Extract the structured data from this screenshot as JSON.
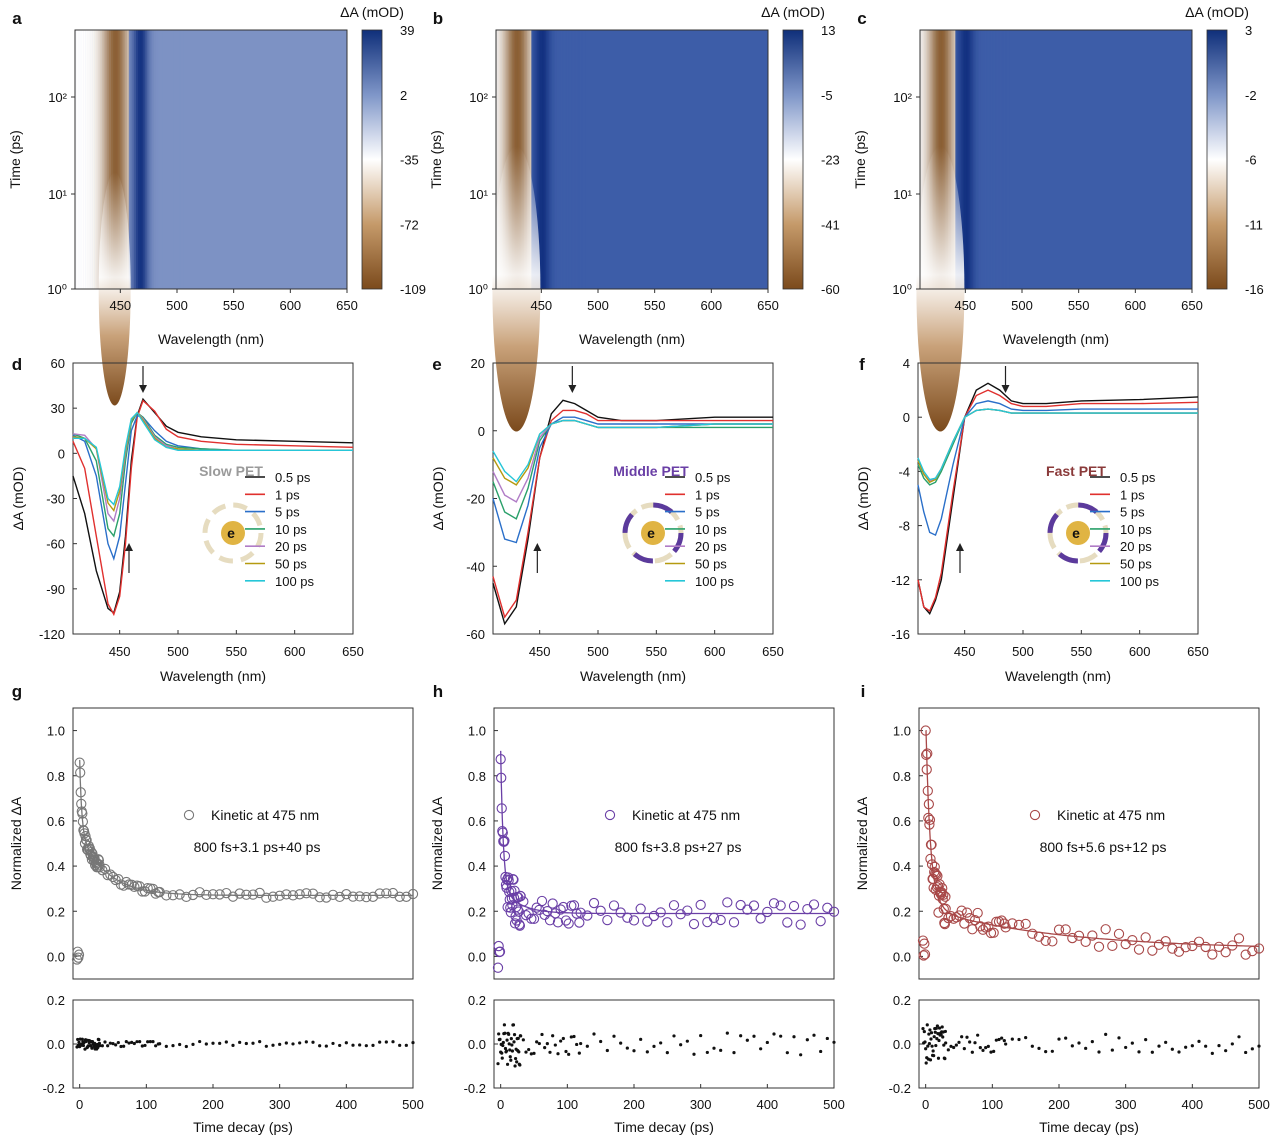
{
  "figure": {
    "colors": {
      "brown": "#7b4a1c",
      "white": "#ffffff",
      "blue": "#1c3f8c",
      "bg_blue": "#3f5fa8"
    },
    "top_row": [
      {
        "letter": "a",
        "cbar_title": "ΔA (mOD)",
        "cbar_ticks": [
          "39",
          "2",
          "-35",
          "-72",
          "-109"
        ],
        "xlabel": "Wavelength (nm)",
        "ylabel": "Time (ps)",
        "yticks": [
          "10²",
          "10¹",
          "10⁰"
        ],
        "xticks": [
          "450",
          "500",
          "550",
          "600",
          "650"
        ]
      },
      {
        "letter": "b",
        "cbar_title": "ΔA (mOD)",
        "cbar_ticks": [
          "13",
          "-5",
          "-23",
          "-41",
          "-60"
        ],
        "xlabel": "Wavelength (nm)",
        "ylabel": "Time (ps)",
        "yticks": [
          "10²",
          "10¹",
          "10⁰"
        ],
        "xticks": [
          "450",
          "500",
          "550",
          "600",
          "650"
        ]
      },
      {
        "letter": "c",
        "cbar_title": "ΔA (mOD)",
        "cbar_ticks": [
          "3",
          "-2",
          "-6",
          "-11",
          "-16"
        ],
        "xlabel": "Wavelength (nm)",
        "ylabel": "Time (ps)",
        "yticks": [
          "10²",
          "10¹",
          "10⁰"
        ],
        "xticks": [
          "450",
          "500",
          "550",
          "600",
          "650"
        ]
      }
    ],
    "legend_labels": [
      "0.5 ps",
      "1 ps",
      "5 ps",
      "10 ps",
      "20 ps",
      "50 ps",
      "100 ps"
    ],
    "legend_colors": [
      "#111111",
      "#e0302e",
      "#2a6fc9",
      "#2aa06a",
      "#b07cc6",
      "#b59a10",
      "#26c6d8"
    ],
    "bottom_xlabel": "Time decay (ps)",
    "bottom_ylabel": "Normalized ΔA",
    "fit_legend": "Kinetic at 475 nm"
  },
  "chart_data": [
    {
      "type": "heatmap",
      "panel": "a",
      "xlabel": "Wavelength (nm)",
      "ylabel": "Time (ps)",
      "xlim": [
        410,
        650
      ],
      "ylim": [
        1,
        500
      ],
      "yscale": "log",
      "colorbar": {
        "label": "ΔA (mOD)",
        "ticks": [
          39,
          2,
          -35,
          -72,
          -109
        ]
      }
    },
    {
      "type": "heatmap",
      "panel": "b",
      "xlabel": "Wavelength (nm)",
      "ylabel": "Time (ps)",
      "xlim": [
        410,
        650
      ],
      "ylim": [
        1,
        500
      ],
      "yscale": "log",
      "colorbar": {
        "label": "ΔA (mOD)",
        "ticks": [
          13,
          -5,
          -23,
          -41,
          -60
        ]
      }
    },
    {
      "type": "heatmap",
      "panel": "c",
      "xlabel": "Wavelength (nm)",
      "ylabel": "Time (ps)",
      "xlim": [
        410,
        650
      ],
      "ylim": [
        1,
        500
      ],
      "yscale": "log",
      "colorbar": {
        "label": "ΔA (mOD)",
        "ticks": [
          3,
          -2,
          -6,
          -11,
          -16
        ]
      }
    },
    {
      "type": "line",
      "panel": "d",
      "annotation": "Slow PET",
      "annotation_color": "#9a9a9a",
      "xlabel": "Wavelength (nm)",
      "ylabel": "ΔA (mOD)",
      "xlim": [
        410,
        650
      ],
      "ylim": [
        -120,
        60
      ],
      "xticks": [
        450,
        500,
        550,
        600,
        650
      ],
      "yticks": [
        60,
        30,
        0,
        -30,
        -60,
        -90,
        -120
      ],
      "x": [
        410,
        420,
        430,
        440,
        445,
        450,
        455,
        460,
        465,
        470,
        480,
        490,
        500,
        520,
        550,
        600,
        650
      ],
      "series": [
        {
          "name": "0.5 ps",
          "values": [
            -15,
            -40,
            -78,
            -103,
            -106,
            -92,
            -55,
            -5,
            25,
            36,
            27,
            18,
            14,
            11,
            9,
            8,
            7
          ]
        },
        {
          "name": "1 ps",
          "values": [
            8,
            -10,
            -55,
            -100,
            -107,
            -95,
            -60,
            -10,
            24,
            35,
            28,
            16,
            11,
            8,
            6,
            5,
            4
          ]
        },
        {
          "name": "5 ps",
          "values": [
            12,
            8,
            -15,
            -60,
            -70,
            -55,
            -20,
            15,
            25,
            24,
            15,
            8,
            5,
            3,
            2,
            2,
            2
          ]
        },
        {
          "name": "10 ps",
          "values": [
            13,
            10,
            -5,
            -50,
            -55,
            -40,
            -5,
            20,
            27,
            24,
            12,
            6,
            4,
            3,
            2,
            2,
            2
          ]
        },
        {
          "name": "20 ps",
          "values": [
            13,
            12,
            3,
            -40,
            -45,
            -30,
            0,
            22,
            27,
            23,
            11,
            5,
            3,
            2,
            2,
            2,
            2
          ]
        },
        {
          "name": "50 ps",
          "values": [
            11,
            10,
            3,
            -33,
            -38,
            -25,
            2,
            22,
            27,
            22,
            10,
            4,
            3,
            2,
            2,
            2,
            2
          ]
        },
        {
          "name": "100 ps",
          "values": [
            10,
            10,
            4,
            -30,
            -34,
            -22,
            4,
            23,
            27,
            21,
            9,
            4,
            2,
            2,
            2,
            2,
            2
          ]
        }
      ]
    },
    {
      "type": "line",
      "panel": "e",
      "annotation": "Middle PET",
      "annotation_color": "#6a3fa6",
      "xlabel": "Wavelength (nm)",
      "ylabel": "ΔA (mOD)",
      "xlim": [
        410,
        650
      ],
      "ylim": [
        -60,
        20
      ],
      "xticks": [
        450,
        500,
        550,
        600,
        650
      ],
      "yticks": [
        20,
        0,
        -20,
        -40,
        -60
      ],
      "x": [
        410,
        420,
        430,
        440,
        450,
        460,
        470,
        480,
        490,
        500,
        520,
        550,
        600,
        650
      ],
      "series": [
        {
          "name": "0.5 ps",
          "values": [
            -45,
            -57,
            -52,
            -32,
            -8,
            5,
            9,
            8,
            6,
            4,
            3,
            3,
            4,
            4
          ]
        },
        {
          "name": "1 ps",
          "values": [
            -43,
            -55,
            -50,
            -30,
            -8,
            3,
            6,
            6,
            5,
            3,
            3,
            3,
            3,
            3
          ]
        },
        {
          "name": "5 ps",
          "values": [
            -20,
            -32,
            -33,
            -22,
            -5,
            2,
            4,
            4,
            3,
            2,
            2,
            2,
            2,
            2
          ]
        },
        {
          "name": "10 ps",
          "values": [
            -15,
            -24,
            -26,
            -17,
            -3,
            2,
            3,
            3,
            2,
            1,
            1,
            1,
            1,
            1
          ]
        },
        {
          "name": "20 ps",
          "values": [
            -12,
            -19,
            -21,
            -14,
            -2,
            2,
            3,
            3,
            2,
            1,
            1,
            1,
            2,
            2
          ]
        },
        {
          "name": "50 ps",
          "values": [
            -8,
            -14,
            -16,
            -11,
            -1,
            2,
            3,
            3,
            2,
            1,
            1,
            1,
            2,
            2
          ]
        },
        {
          "name": "100 ps",
          "values": [
            -6,
            -12,
            -15,
            -10,
            -1,
            2,
            3,
            3,
            2,
            1,
            1,
            1,
            2,
            2
          ]
        }
      ]
    },
    {
      "type": "line",
      "panel": "f",
      "annotation": "Fast PET",
      "annotation_color": "#8a3a3a",
      "xlabel": "Wavelength (nm)",
      "ylabel": "ΔA (mOD)",
      "xlim": [
        410,
        650
      ],
      "ylim": [
        -16,
        4
      ],
      "xticks": [
        450,
        500,
        550,
        600,
        650
      ],
      "yticks": [
        4,
        0,
        -4,
        -8,
        -12,
        -16
      ],
      "x": [
        410,
        415,
        420,
        425,
        430,
        440,
        450,
        460,
        470,
        480,
        490,
        500,
        520,
        550,
        600,
        650
      ],
      "series": [
        {
          "name": "0.5 ps",
          "values": [
            -12,
            -14,
            -14.5,
            -13.5,
            -12,
            -6,
            0,
            2,
            2.5,
            2,
            1.2,
            1,
            1,
            1.2,
            1.3,
            1.5
          ]
        },
        {
          "name": "1 ps",
          "values": [
            -12,
            -14,
            -14.3,
            -13.3,
            -11.5,
            -5.5,
            0,
            1.6,
            2,
            1.6,
            1,
            0.8,
            0.8,
            1,
            1,
            1.1
          ]
        },
        {
          "name": "5 ps",
          "values": [
            -5,
            -7,
            -8.5,
            -8.7,
            -7.5,
            -3.5,
            0,
            1,
            1.2,
            1,
            0.6,
            0.5,
            0.5,
            0.6,
            0.6,
            0.6
          ]
        },
        {
          "name": "10 ps",
          "values": [
            -3.5,
            -4.5,
            -5,
            -4.8,
            -4,
            -2,
            0,
            0.5,
            0.6,
            0.5,
            0.3,
            0.3,
            0.3,
            0.3,
            0.3,
            0.3
          ]
        },
        {
          "name": "20 ps",
          "values": [
            -3.2,
            -4.2,
            -4.7,
            -4.5,
            -3.8,
            -1.8,
            0,
            0.5,
            0.6,
            0.5,
            0.3,
            0.3,
            0.3,
            0.3,
            0.3,
            0.3
          ]
        },
        {
          "name": "50 ps",
          "values": [
            -3.2,
            -4.2,
            -4.8,
            -4.6,
            -3.8,
            -1.8,
            0,
            0.5,
            0.6,
            0.5,
            0.3,
            0.3,
            0.3,
            0.3,
            0.3,
            0.3
          ]
        },
        {
          "name": "100 ps",
          "values": [
            -3,
            -4,
            -4.6,
            -4.5,
            -3.8,
            -1.8,
            0,
            0.5,
            0.6,
            0.5,
            0.3,
            0.3,
            0.3,
            0.3,
            0.3,
            0.3
          ]
        }
      ]
    },
    {
      "type": "scatter",
      "panel": "g",
      "legend": "Kinetic at 475 nm",
      "fit_label": "800 fs+3.1 ps+40 ps",
      "marker_color": "#777777",
      "xlabel": "Time decay (ps)",
      "ylabel": "Normalized ΔA",
      "xlim": [
        -10,
        500
      ],
      "ylim": [
        -0.1,
        1.1
      ],
      "xticks": [
        0,
        100,
        200,
        300,
        400,
        500
      ],
      "yticks": [
        0.0,
        0.2,
        0.4,
        0.6,
        0.8,
        1.0
      ],
      "fit": {
        "a0": 0.27,
        "a1": 0.32,
        "t1": 3.1,
        "a2": 0.28,
        "t2": 40
      },
      "residual_ylim": [
        -0.2,
        0.2
      ],
      "residual_yticks": [
        0.2,
        0.0,
        -0.2
      ],
      "residual_noise": 0.012
    },
    {
      "type": "scatter",
      "panel": "h",
      "legend": "Kinetic at 475 nm",
      "fit_label": "800 fs+3.8 ps+27 ps",
      "marker_color": "#6a3fa6",
      "xlabel": "Time decay (ps)",
      "ylabel": "Normalized ΔA",
      "xlim": [
        -10,
        500
      ],
      "ylim": [
        -0.1,
        1.1
      ],
      "xticks": [
        0,
        100,
        200,
        300,
        400,
        500
      ],
      "yticks": [
        0.0,
        0.2,
        0.4,
        0.6,
        0.8,
        1.0
      ],
      "fit": {
        "a0": 0.19,
        "a1": 0.6,
        "t1": 3.8,
        "a2": 0.12,
        "t2": 27
      },
      "residual_ylim": [
        -0.2,
        0.2
      ],
      "residual_yticks": [
        0.2,
        0.0,
        -0.2
      ],
      "residual_noise": 0.05
    },
    {
      "type": "scatter",
      "panel": "i",
      "legend": "Kinetic at 475 nm",
      "fit_label": "800 fs+5.6 ps+12 ps",
      "marker_color": "#a84848",
      "xlabel": "Time decay (ps)",
      "ylabel": "Normalized ΔA",
      "xlim": [
        -10,
        500
      ],
      "ylim": [
        -0.1,
        1.1
      ],
      "xticks": [
        0,
        100,
        200,
        300,
        400,
        500
      ],
      "yticks": [
        0.0,
        0.2,
        0.4,
        0.6,
        0.8,
        1.0
      ],
      "fit": {
        "a0": 0.03,
        "a1": 0.65,
        "t1": 5.6,
        "a2": 0.22,
        "t2": 12,
        "a3": 0.18,
        "t3": 200
      },
      "residual_ylim": [
        -0.2,
        0.2
      ],
      "residual_yticks": [
        0.2,
        0.0,
        -0.2
      ],
      "residual_noise": 0.045
    }
  ]
}
